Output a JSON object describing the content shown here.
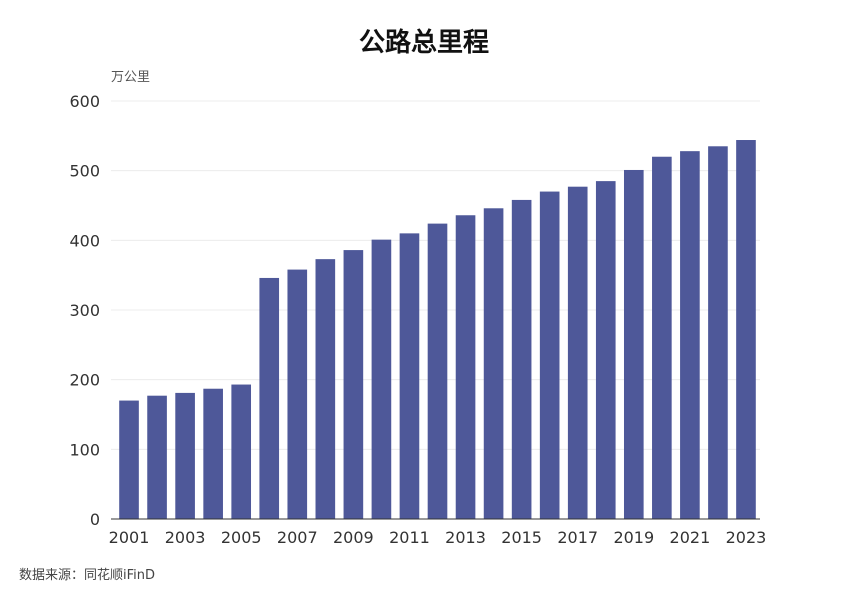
{
  "chart_data": {
    "type": "bar",
    "title": "公路总里程",
    "ylabel": "万公里",
    "xlabel": "",
    "source": "数据来源：同花顺iFinD",
    "ylim": [
      0,
      600
    ],
    "yticks": [
      0,
      100,
      200,
      300,
      400,
      500,
      600
    ],
    "categories": [
      "2001",
      "2002",
      "2003",
      "2004",
      "2005",
      "2006",
      "2007",
      "2008",
      "2009",
      "2010",
      "2011",
      "2012",
      "2013",
      "2014",
      "2015",
      "2016",
      "2017",
      "2018",
      "2019",
      "2020",
      "2021",
      "2022",
      "2023"
    ],
    "xtick_labels": [
      "2001",
      "2003",
      "2005",
      "2007",
      "2009",
      "2011",
      "2013",
      "2015",
      "2017",
      "2019",
      "2021",
      "2023"
    ],
    "values": [
      170,
      177,
      181,
      187,
      193,
      346,
      358,
      373,
      386,
      401,
      410,
      424,
      436,
      446,
      458,
      470,
      477,
      485,
      501,
      520,
      528,
      535,
      544
    ],
    "bar_color": "#4e5899",
    "grid": true
  }
}
